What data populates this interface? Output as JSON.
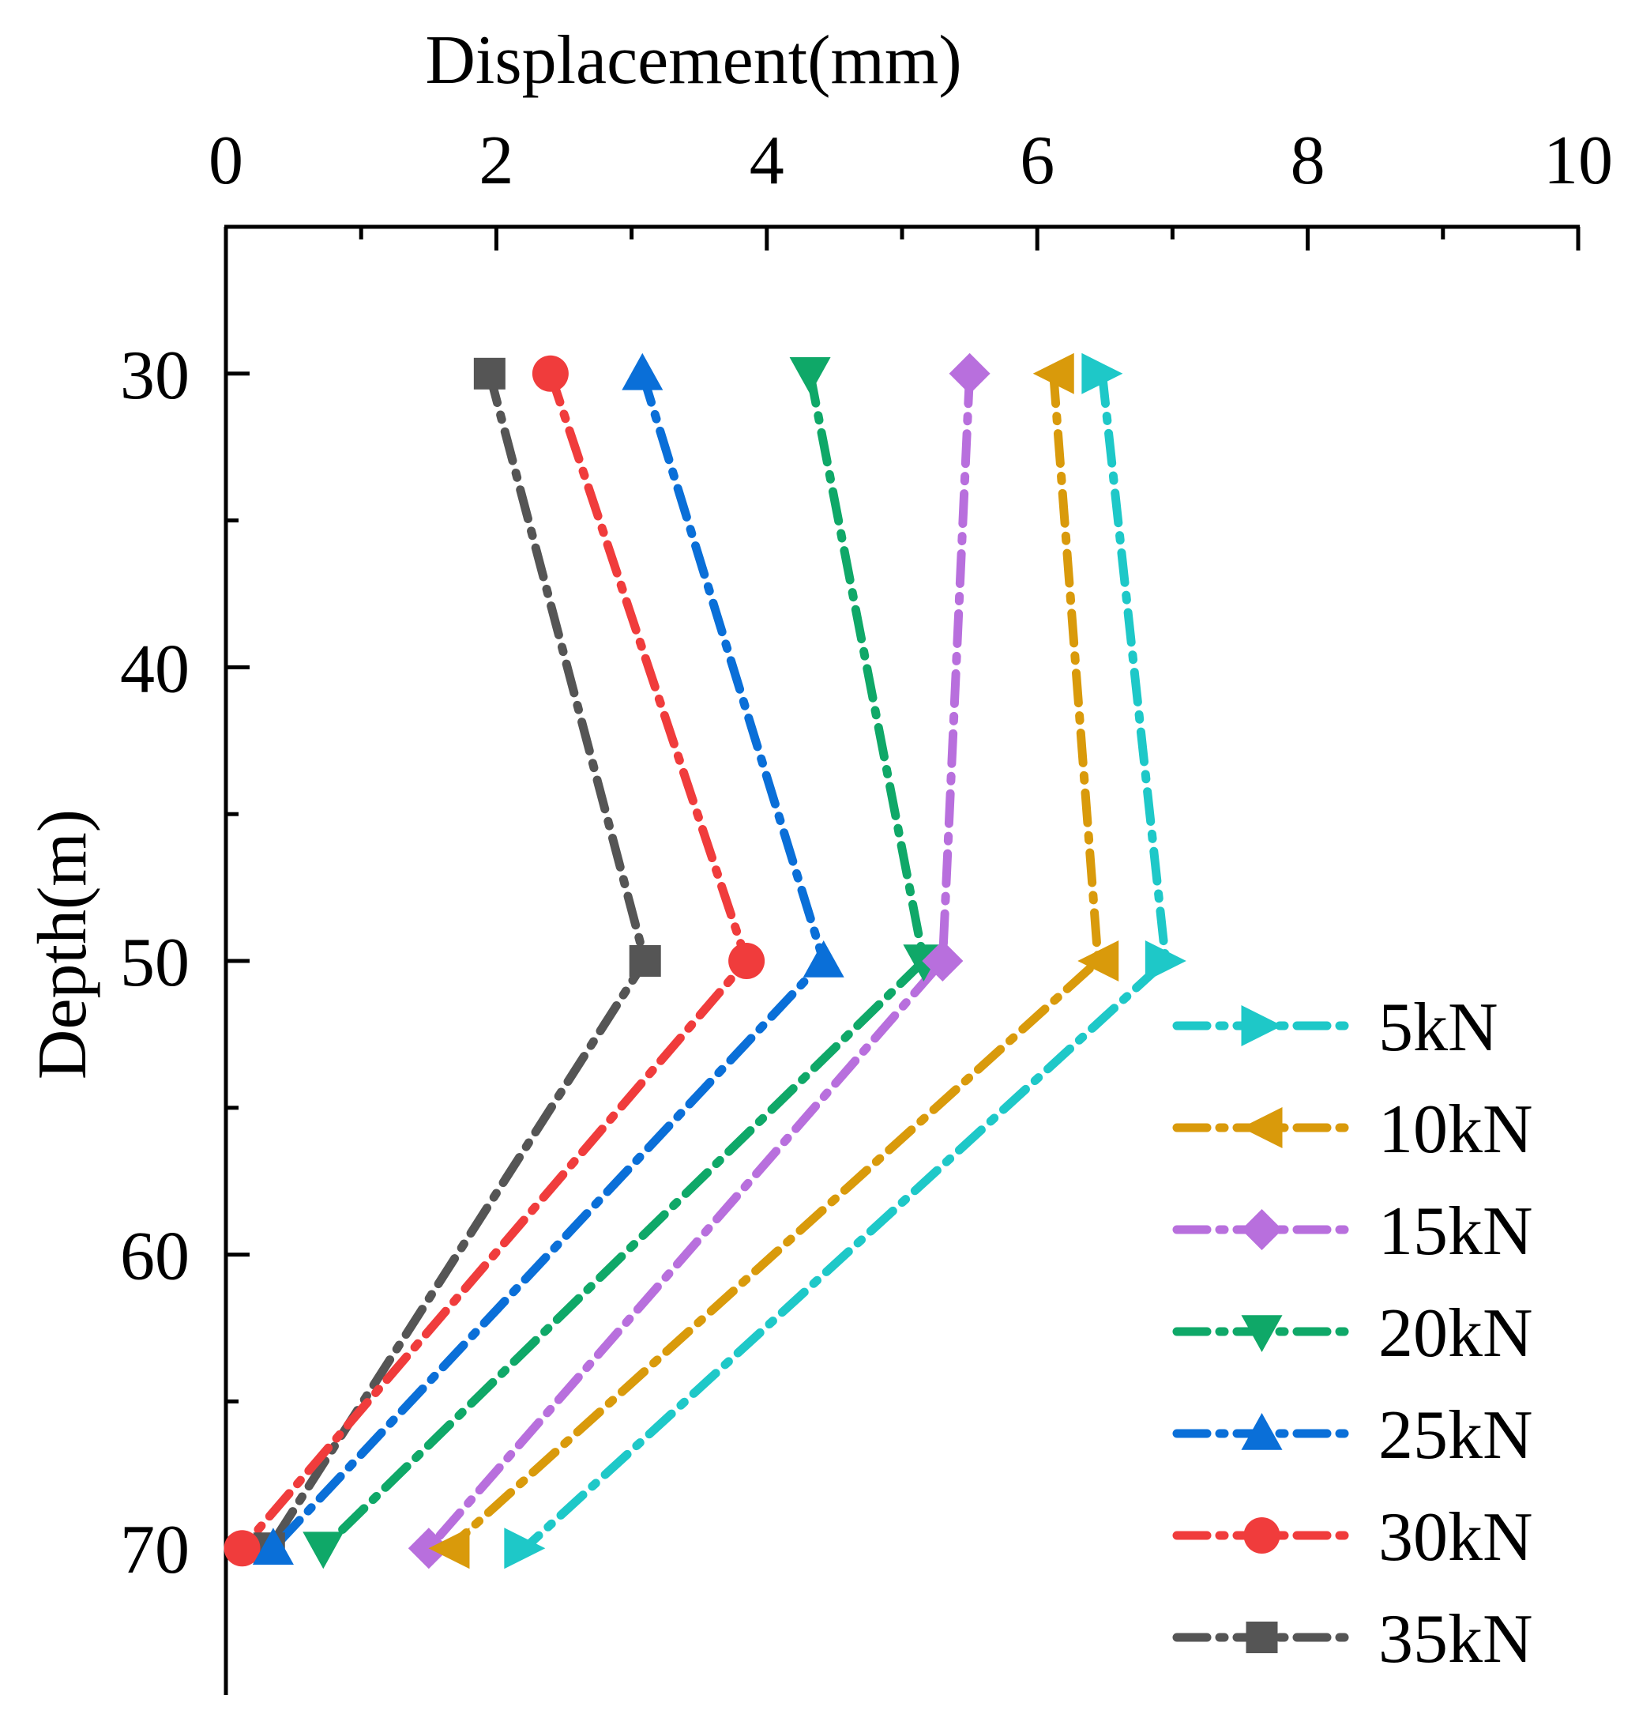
{
  "chart_data": {
    "type": "line",
    "title": "",
    "xlabel": "Displacement(mm)",
    "ylabel": "Depth(m)",
    "xlim": [
      0,
      10
    ],
    "ylim": [
      25,
      75
    ],
    "y_inverted": true,
    "x_axis_position": "top",
    "xticks": [
      "0",
      "2",
      "4",
      "6",
      "8",
      "10"
    ],
    "yticks": [
      "30",
      "40",
      "50",
      "60",
      "70"
    ],
    "grid": false,
    "legend_position": "bottom-right",
    "depths": [
      30,
      50,
      70
    ],
    "series": [
      {
        "name": "5kN",
        "color": "#1ec8c8",
        "marker": "triangle-right",
        "displacement": [
          6.48,
          6.95,
          2.21
        ]
      },
      {
        "name": "10kN",
        "color": "#d99a0b",
        "marker": "triangle-left",
        "displacement": [
          6.12,
          6.45,
          1.65
        ]
      },
      {
        "name": "15kN",
        "color": "#b86fdd",
        "marker": "diamond",
        "displacement": [
          5.5,
          5.3,
          1.5
        ]
      },
      {
        "name": "20kN",
        "color": "#0fa868",
        "marker": "triangle-down",
        "displacement": [
          4.32,
          5.16,
          0.72
        ]
      },
      {
        "name": "25kN",
        "color": "#0a6fd8",
        "marker": "triangle-up",
        "displacement": [
          3.08,
          4.42,
          0.35
        ]
      },
      {
        "name": "30kN",
        "color": "#f03c3c",
        "marker": "circle",
        "displacement": [
          2.4,
          3.85,
          0.12
        ]
      },
      {
        "name": "35kN",
        "color": "#555555",
        "marker": "square",
        "displacement": [
          1.95,
          3.1,
          0.32
        ]
      }
    ]
  }
}
